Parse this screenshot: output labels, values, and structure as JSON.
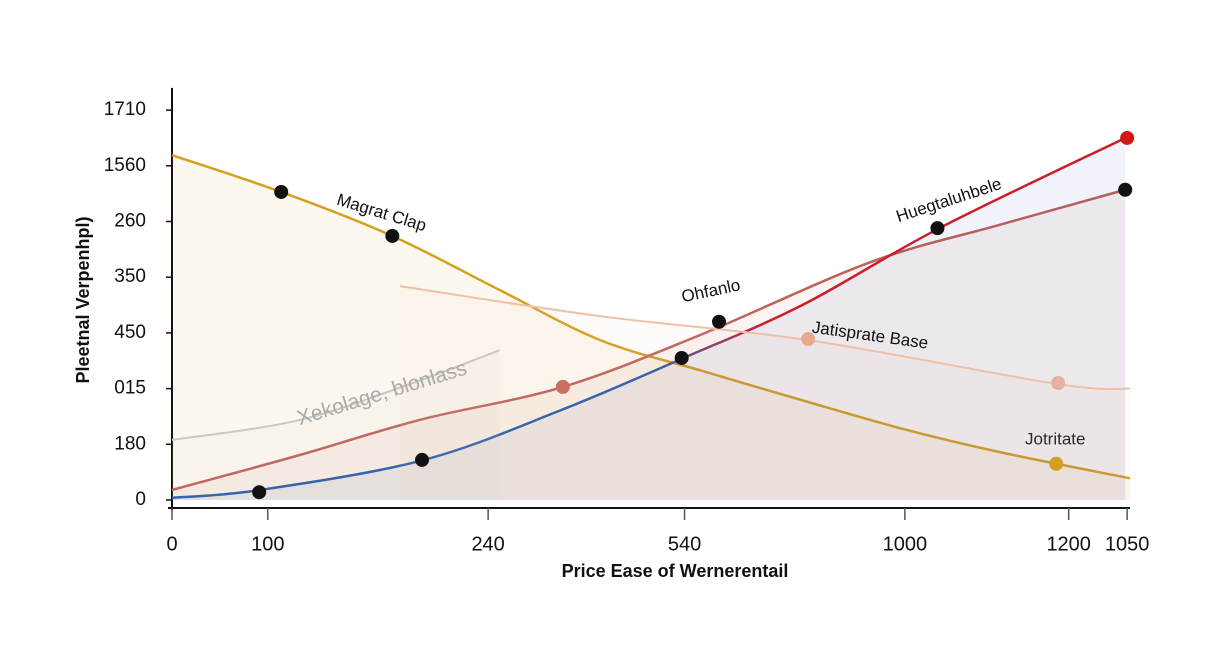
{
  "chart_data": {
    "type": "line",
    "x_label": "Price Ease of Wernerentail",
    "y_label": "Pleetnal Verpenhpl)",
    "xlim": [
      0,
      100
    ],
    "xticks": [
      0,
      {
        "value": 10,
        "label": "100"
      },
      {
        "value": 33,
        "label": "240"
      },
      {
        "value": 53.5,
        "label": "540"
      },
      {
        "value": 76.5,
        "label": "1000"
      },
      {
        "value": 93.6,
        "label": "1200"
      },
      {
        "value": 99.7,
        "label": "1050"
      }
    ],
    "ylim": [
      0,
      7.4
    ],
    "yticks": [
      0,
      {
        "value": 1,
        "label": "180"
      },
      {
        "value": 2,
        "label": "015"
      },
      {
        "value": 3,
        "label": "450"
      },
      {
        "value": 4,
        "label": "350"
      },
      {
        "value": 5,
        "label": "260"
      },
      {
        "value": 6,
        "label": "1560"
      },
      {
        "value": 7,
        "label": "1710"
      }
    ],
    "series": [
      {
        "name": "Magrat Clap",
        "color": "#d4a020",
        "x": [
          0,
          11.4,
          23.0,
          34.2,
          44.7,
          55.1,
          65.6,
          76.0,
          86.4,
          100
        ],
        "values": [
          6.19,
          5.53,
          4.74,
          3.77,
          2.87,
          2.33,
          1.8,
          1.29,
          0.86,
          0.39
        ]
      },
      {
        "name": "Ohfanlo",
        "color": "#c0605a",
        "x": [
          0,
          13.4,
          25.9,
          40.8,
          55.1,
          72.9,
          86.4,
          99.5
        ],
        "values": [
          0.18,
          0.81,
          1.44,
          2.03,
          2.96,
          4.27,
          4.94,
          5.57
        ]
      },
      {
        "name": "Huegtaluhbele",
        "color": "#c81e2e",
        "color_start": "#2a5cad",
        "x": [
          0,
          9.2,
          26.3,
          40.7,
          53.4,
          65.8,
          80.1,
          99.5
        ],
        "values": [
          0.04,
          0.18,
          0.72,
          1.62,
          2.55,
          3.5,
          4.88,
          6.5
        ]
      },
      {
        "name": "Jatisprate Base",
        "color": "#efc0a8",
        "x": [
          23.8,
          44.7,
          66.4,
          92.5,
          100
        ],
        "values": [
          3.84,
          3.3,
          2.87,
          2.08,
          2.0
        ]
      },
      {
        "name": "Xekolage, blonlass",
        "color": "#c8c8c8",
        "x": [
          0,
          13.4,
          25.9,
          34.2
        ],
        "values": [
          1.08,
          1.44,
          2.15,
          2.69
        ]
      }
    ],
    "points": {
      "x": [
        11.4,
        23.0,
        9.1,
        26.1,
        53.2,
        57.1,
        79.9,
        99.5,
        40.8,
        66.4,
        92.5,
        99.7,
        92.3
      ],
      "values": [
        5.53,
        4.74,
        0.14,
        0.72,
        2.55,
        3.2,
        4.88,
        5.57,
        2.03,
        2.89,
        2.1,
        6.5,
        0.65
      ],
      "colors": [
        "#111111",
        "#111111",
        "#111111",
        "#111111",
        "#111111",
        "#111111",
        "#111111",
        "#111111",
        "#c8705e",
        "#e8a98a",
        "#e8b0a0",
        "#d01818",
        "#d4a020"
      ]
    },
    "annotations": [
      "Jotritate"
    ]
  }
}
